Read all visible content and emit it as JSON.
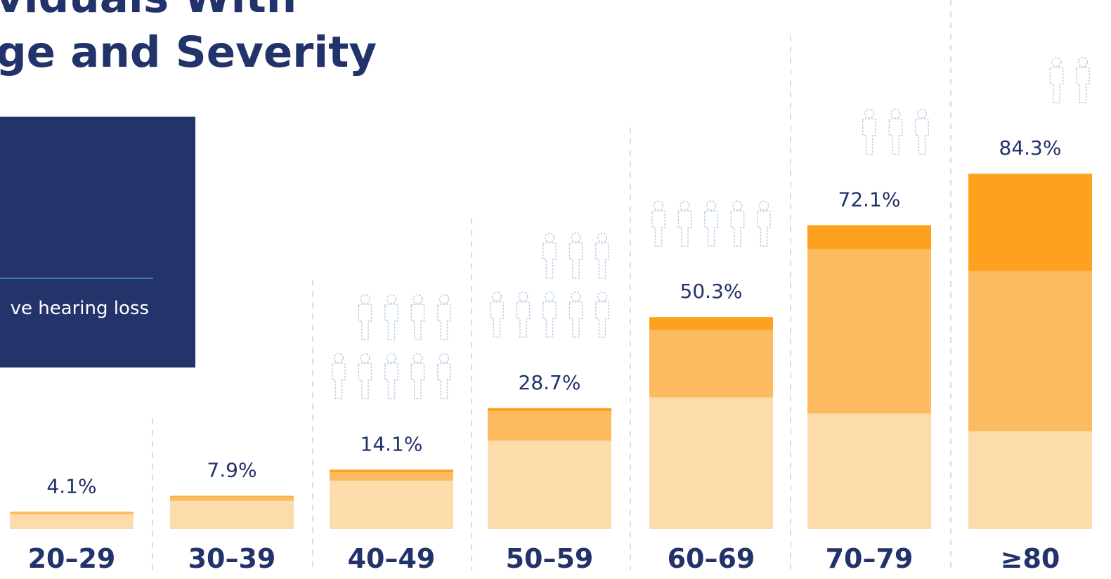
{
  "title": {
    "line1": "viduals With",
    "line2": "ge and Severity"
  },
  "legend_panel": {
    "text": "ve hearing loss"
  },
  "colors": {
    "navy": "#22326a",
    "mild": "#fddcab",
    "moderate": "#fcbb60",
    "severe": "#fea11e",
    "outline": "#b9cde2",
    "divider": "#c3d3e5"
  },
  "chart_data": {
    "type": "bar",
    "stacked": true,
    "categories": [
      "20–29",
      "30–39",
      "40–49",
      "50–59",
      "60–69",
      "70–79",
      "≥80"
    ],
    "totals_labels": [
      "4.1%",
      "7.9%",
      "14.1%",
      "28.7%",
      "50.3%",
      "72.1%",
      "84.3%"
    ],
    "series": [
      {
        "values": [
          3.5,
          6.7,
          11.5,
          21.0,
          31.2,
          27.4,
          23.2
        ]
      },
      {
        "values": [
          0.5,
          1.0,
          2.0,
          7.0,
          16.0,
          39.0,
          38.0
        ]
      },
      {
        "values": [
          0.1,
          0.2,
          0.6,
          0.7,
          3.1,
          5.7,
          23.1
        ]
      }
    ],
    "pictograms": [
      {
        "category": "40–49",
        "filled_of_10": 1.4
      },
      {
        "category": "50–59",
        "filled_of_10": 2.9
      },
      {
        "category": "60–69",
        "filled_of_10": 5.0
      },
      {
        "category": "70–79",
        "filled_of_10": 7.2
      },
      {
        "category": "≥80",
        "filled_of_10": 8.4
      }
    ],
    "ylim": [
      0,
      100
    ],
    "grid": false
  }
}
